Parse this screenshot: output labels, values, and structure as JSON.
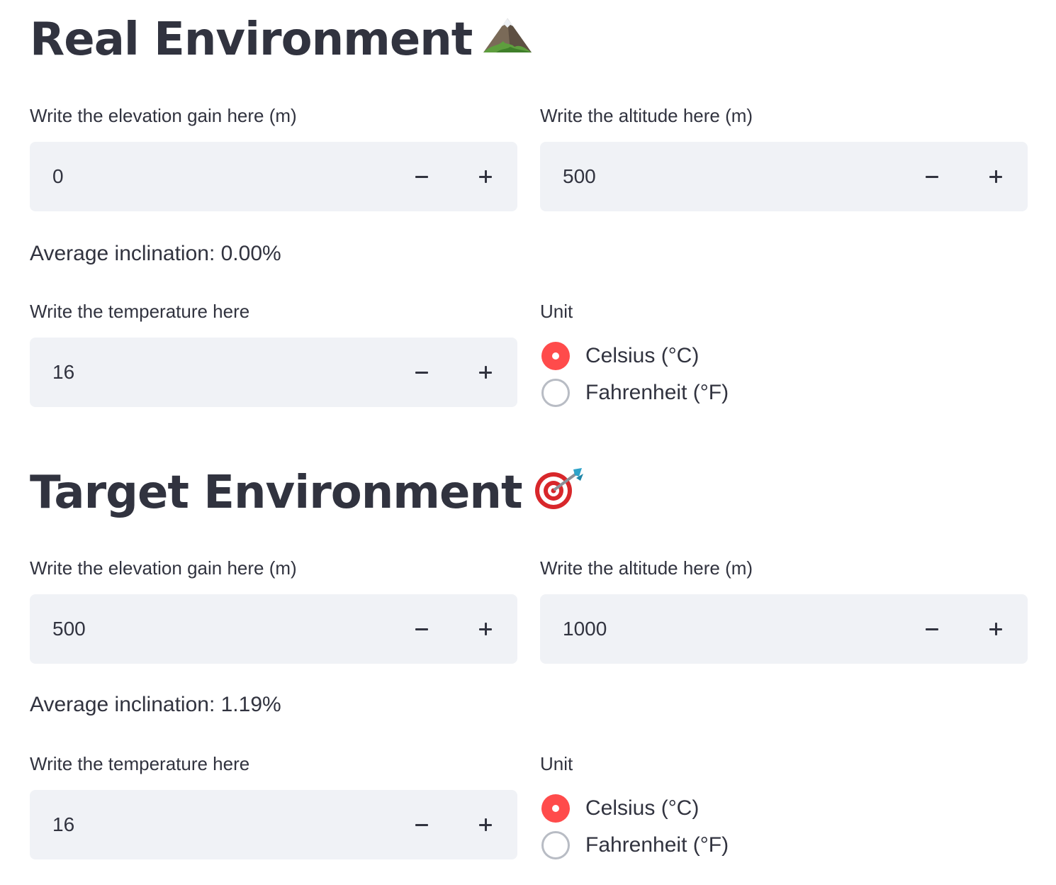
{
  "sections": [
    {
      "title": "Real Environment",
      "title_icon": "mountain-icon",
      "elevation_gain": {
        "label": "Write the elevation gain here (m)",
        "value": "0"
      },
      "altitude": {
        "label": "Write the altitude here (m)",
        "value": "500"
      },
      "inclination_text": "Average inclination: 0.00%",
      "temperature": {
        "label": "Write the temperature here",
        "value": "16"
      },
      "unit": {
        "label": "Unit",
        "options": [
          "Celsius (°C)",
          "Fahrenheit (°F)"
        ],
        "selected": "Celsius (°C)"
      }
    },
    {
      "title": "Target Environment",
      "title_icon": "bullseye-dart-icon",
      "elevation_gain": {
        "label": "Write the elevation gain here (m)",
        "value": "500"
      },
      "altitude": {
        "label": "Write the altitude here (m)",
        "value": "1000"
      },
      "inclination_text": "Average inclination: 1.19%",
      "temperature": {
        "label": "Write the temperature here",
        "value": "16"
      },
      "unit": {
        "label": "Unit",
        "options": [
          "Celsius (°C)",
          "Fahrenheit (°F)"
        ],
        "selected": "Celsius (°C)"
      }
    }
  ],
  "colors": {
    "accent": "#ff4b4b",
    "text": "#31333f",
    "input_bg": "#f0f2f6",
    "radio_border": "#b8bcc4"
  }
}
